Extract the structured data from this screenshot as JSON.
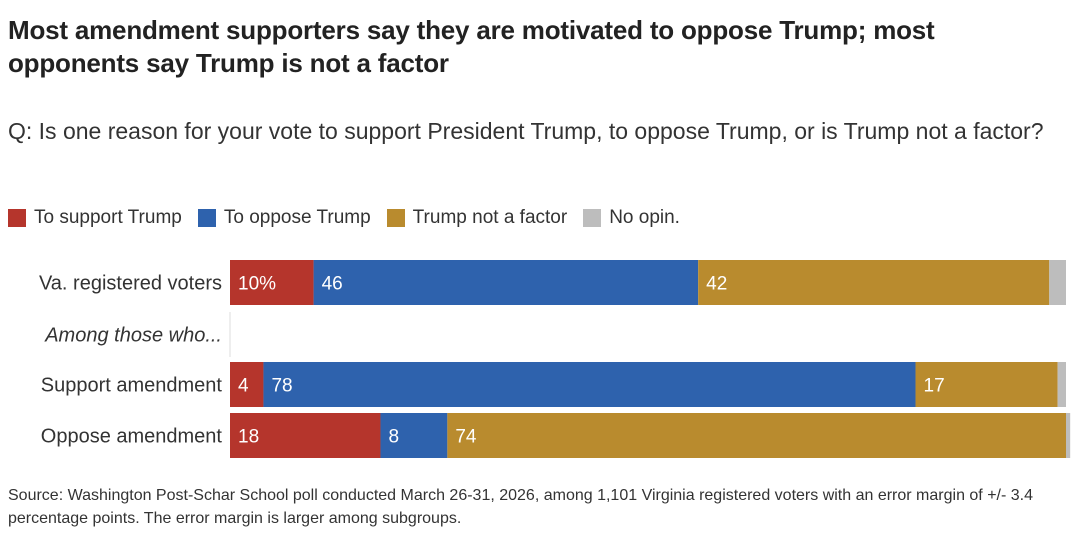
{
  "title": "Most amendment supporters say they are motivated to oppose Trump; most opponents say Trump is not a factor",
  "subtitle": "Q: Is one reason for your vote to support President Trump, to oppose Trump, or is Trump not a factor?",
  "source": "Source: Washington Post-Schar School poll conducted March 26-31, 2026, among 1,101 Virginia registered voters with an error margin of +/- 3.4 percentage points. The error margin is larger among subgroups.",
  "colors": {
    "support": "#b5352c",
    "oppose": "#2e62ad",
    "not_factor": "#b98b2e",
    "no_opinion": "#bdbdbd"
  },
  "chart_data": {
    "type": "bar",
    "orientation": "horizontal",
    "stacked": true,
    "title": "Most amendment supporters say they are motivated to oppose Trump; most opponents say Trump is not a factor",
    "subtitle": "Q: Is one reason for your vote to support President Trump, to oppose Trump, or is Trump not a factor?",
    "xlabel": "",
    "ylabel": "",
    "xlim": [
      0,
      100
    ],
    "grid": false,
    "legend_position": "top-left",
    "legend": [
      "To support Trump",
      "To oppose Trump",
      "Trump not a factor",
      "No opin."
    ],
    "categories": [
      "Va. registered voters",
      "Among those who...",
      "Support amendment",
      "Oppose amendment"
    ],
    "category_styles": [
      "normal",
      "italic-subheader",
      "normal",
      "normal"
    ],
    "series": [
      {
        "name": "To support Trump",
        "key": "support",
        "values": [
          10,
          null,
          4,
          18
        ],
        "labels": [
          "10%",
          "",
          "4",
          "18"
        ]
      },
      {
        "name": "To oppose Trump",
        "key": "oppose",
        "values": [
          46,
          null,
          78,
          8
        ],
        "labels": [
          "46",
          "",
          "78",
          "8"
        ]
      },
      {
        "name": "Trump not a factor",
        "key": "not_factor",
        "values": [
          42,
          null,
          17,
          74
        ],
        "labels": [
          "42",
          "",
          "17",
          "74"
        ]
      },
      {
        "name": "No opin.",
        "key": "no_opinion",
        "values": [
          2,
          null,
          1,
          0.5
        ],
        "labels": [
          "",
          "",
          "",
          ""
        ]
      }
    ]
  }
}
